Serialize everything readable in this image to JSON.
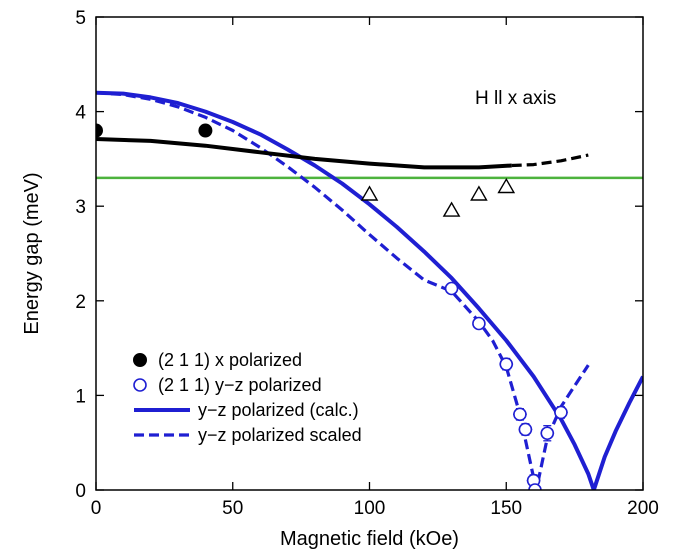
{
  "chart_data": {
    "type": "scatter",
    "title": "",
    "xlabel": "Magnetic field (kOe)",
    "ylabel": "Energy gap (meV)",
    "xlim": [
      0,
      200
    ],
    "ylim": [
      0,
      5
    ],
    "xticks": [
      0,
      50,
      100,
      150,
      200
    ],
    "yticks": [
      0,
      1,
      2,
      3,
      4,
      5
    ],
    "grid": false,
    "legend_position": "bottom-left",
    "annotation": "H ll x axis",
    "reference_line": {
      "y": 3.3,
      "color": "#4db33d"
    },
    "series": [
      {
        "name": "(2 1 1) x polarized",
        "kind": "points",
        "marker": "filled-circle",
        "color": "#000000",
        "points": [
          [
            0,
            3.8
          ],
          [
            40,
            3.8
          ]
        ]
      },
      {
        "name": "(2 1 1) y−z polarized",
        "kind": "points",
        "marker": "open-circle",
        "color": "#1f1fd2",
        "points": [
          [
            130,
            2.13
          ],
          [
            140,
            1.76
          ],
          [
            150,
            1.33
          ],
          [
            155,
            0.8
          ],
          [
            157,
            0.64
          ],
          [
            160,
            0.1
          ],
          [
            160.5,
            0.0
          ],
          [
            165,
            0.6
          ],
          [
            170,
            0.82
          ]
        ]
      },
      {
        "name": "y−z polarized (calc.)",
        "kind": "line",
        "dash": "solid",
        "color": "#1f1fd2",
        "points": [
          [
            0,
            4.2
          ],
          [
            10,
            4.19
          ],
          [
            20,
            4.15
          ],
          [
            30,
            4.09
          ],
          [
            40,
            4.0
          ],
          [
            50,
            3.89
          ],
          [
            60,
            3.76
          ],
          [
            70,
            3.6
          ],
          [
            80,
            3.43
          ],
          [
            90,
            3.24
          ],
          [
            100,
            3.02
          ],
          [
            110,
            2.78
          ],
          [
            120,
            2.52
          ],
          [
            130,
            2.24
          ],
          [
            140,
            1.92
          ],
          [
            150,
            1.58
          ],
          [
            160,
            1.2
          ],
          [
            170,
            0.75
          ],
          [
            175,
            0.48
          ],
          [
            180,
            0.17
          ],
          [
            182,
            0.0
          ],
          [
            186,
            0.35
          ],
          [
            190,
            0.62
          ],
          [
            195,
            0.92
          ],
          [
            200,
            1.2
          ]
        ]
      },
      {
        "name": "y−z polarized scaled",
        "kind": "line",
        "dash": "dashed",
        "color": "#1f1fd2",
        "points": [
          [
            0,
            4.2
          ],
          [
            10,
            4.18
          ],
          [
            20,
            4.13
          ],
          [
            30,
            4.05
          ],
          [
            40,
            3.94
          ],
          [
            50,
            3.8
          ],
          [
            60,
            3.62
          ],
          [
            70,
            3.42
          ],
          [
            80,
            3.2
          ],
          [
            90,
            2.96
          ],
          [
            100,
            2.7
          ],
          [
            110,
            2.45
          ],
          [
            120,
            2.22
          ],
          [
            130,
            2.1
          ],
          [
            140,
            1.78
          ],
          [
            145,
            1.58
          ],
          [
            150,
            1.3
          ],
          [
            155,
            0.8
          ],
          [
            158,
            0.4
          ],
          [
            161,
            0.0
          ],
          [
            165,
            0.55
          ],
          [
            170,
            0.88
          ],
          [
            175,
            1.1
          ],
          [
            180,
            1.32
          ]
        ]
      },
      {
        "name": "",
        "kind": "line",
        "dash": "solid",
        "color": "#000000",
        "points": [
          [
            0,
            3.71
          ],
          [
            20,
            3.69
          ],
          [
            40,
            3.64
          ],
          [
            60,
            3.57
          ],
          [
            80,
            3.5
          ],
          [
            100,
            3.45
          ],
          [
            120,
            3.41
          ],
          [
            140,
            3.41
          ],
          [
            152,
            3.43
          ]
        ]
      },
      {
        "name": "",
        "kind": "line",
        "dash": "dashed",
        "color": "#000000",
        "points": [
          [
            152,
            3.43
          ],
          [
            160,
            3.44
          ],
          [
            170,
            3.48
          ],
          [
            180,
            3.54
          ]
        ]
      },
      {
        "name": "",
        "kind": "points",
        "marker": "open-triangle",
        "color": "#000000",
        "points": [
          [
            100,
            3.12
          ],
          [
            130,
            2.95
          ],
          [
            140,
            3.12
          ],
          [
            150,
            3.2
          ]
        ]
      }
    ],
    "error_bars": [
      {
        "x": 150,
        "y": 1.33,
        "dx": 2.5,
        "dy": 0.06
      },
      {
        "x": 155,
        "y": 0.8,
        "dx": 2.5,
        "dy": 0.06
      },
      {
        "x": 157,
        "y": 0.64,
        "dx": 2.5,
        "dy": 0.06
      },
      {
        "x": 160,
        "y": 0.1,
        "dx": 2.5,
        "dy": 0.06
      },
      {
        "x": 165,
        "y": 0.6,
        "dx": 2.5,
        "dy": 0.08
      },
      {
        "x": 170,
        "y": 0.82,
        "dx": 2.5,
        "dy": 0.06
      }
    ],
    "legend": [
      {
        "label": "(2 1 1) x polarized",
        "symbol": "filled-circle",
        "color": "#000000"
      },
      {
        "label": "(2 1 1) y−z polarized",
        "symbol": "open-circle",
        "color": "#1f1fd2"
      },
      {
        "label": "y−z polarized (calc.)",
        "symbol": "solid-line",
        "color": "#1f1fd2"
      },
      {
        "label": "y−z polarized scaled",
        "symbol": "dashed-line",
        "color": "#1f1fd2"
      }
    ]
  }
}
